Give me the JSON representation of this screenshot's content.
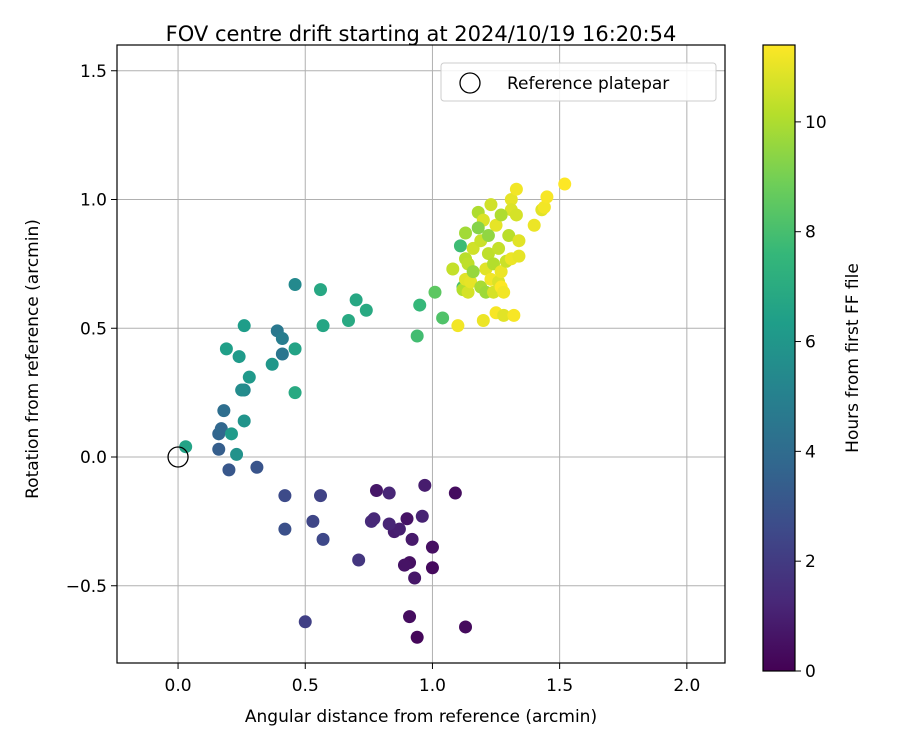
{
  "chart_data": {
    "type": "scatter",
    "title": "FOV centre drift starting at 2024/10/19 16:20:54",
    "xlabel": "Angular distance from reference (arcmin)",
    "ylabel": "Rotation from reference (arcmin)",
    "xlim": [
      -0.24,
      2.15
    ],
    "ylim": [
      -0.8,
      1.6
    ],
    "xticks": [
      0.0,
      0.5,
      1.0,
      1.5,
      2.0
    ],
    "xtick_labels": [
      "0.0",
      "0.5",
      "1.0",
      "1.5",
      "2.0"
    ],
    "yticks": [
      -0.5,
      0.0,
      0.5,
      1.0,
      1.5
    ],
    "ytick_labels": [
      "−0.5",
      "0.0",
      "0.5",
      "1.0",
      "1.5"
    ],
    "grid": true,
    "legend": {
      "placement": "top-right",
      "entries": [
        "Reference platepar"
      ]
    },
    "reference_point": {
      "name": "Reference platepar",
      "x": 0.0,
      "y": 0.0,
      "marker": "open-circle"
    },
    "colorbar": {
      "label": "Hours from first FF file",
      "range": [
        0,
        11.4
      ],
      "ticks": [
        0,
        2,
        4,
        6,
        8,
        10
      ],
      "tick_labels": [
        "0",
        "2",
        "4",
        "6",
        "8",
        "10"
      ],
      "colormap": "viridis",
      "colors": [
        "#440154",
        "#482878",
        "#3e4989",
        "#31688e",
        "#26828e",
        "#1f9e89",
        "#35b779",
        "#6ece58",
        "#b5de2b",
        "#fde725"
      ]
    },
    "points": [
      {
        "x": 0.94,
        "y": -0.7,
        "c": 0.2
      },
      {
        "x": 1.13,
        "y": -0.66,
        "c": 0.3
      },
      {
        "x": 0.91,
        "y": -0.62,
        "c": 0.4
      },
      {
        "x": 0.93,
        "y": -0.47,
        "c": 0.7
      },
      {
        "x": 0.91,
        "y": -0.41,
        "c": 0.5
      },
      {
        "x": 0.89,
        "y": -0.42,
        "c": 0.6
      },
      {
        "x": 1.0,
        "y": -0.43,
        "c": 0.3
      },
      {
        "x": 1.0,
        "y": -0.35,
        "c": 0.5
      },
      {
        "x": 0.92,
        "y": -0.32,
        "c": 0.8
      },
      {
        "x": 0.85,
        "y": -0.29,
        "c": 0.9
      },
      {
        "x": 0.87,
        "y": -0.28,
        "c": 1.0
      },
      {
        "x": 0.83,
        "y": -0.26,
        "c": 1.2
      },
      {
        "x": 0.9,
        "y": -0.24,
        "c": 0.6
      },
      {
        "x": 0.96,
        "y": -0.23,
        "c": 1.1
      },
      {
        "x": 0.76,
        "y": -0.25,
        "c": 1.4
      },
      {
        "x": 0.77,
        "y": -0.24,
        "c": 1.3
      },
      {
        "x": 0.78,
        "y": -0.13,
        "c": 0.7
      },
      {
        "x": 0.83,
        "y": -0.14,
        "c": 1.2
      },
      {
        "x": 0.97,
        "y": -0.11,
        "c": 0.9
      },
      {
        "x": 1.09,
        "y": -0.14,
        "c": 0.4
      },
      {
        "x": 0.71,
        "y": -0.4,
        "c": 1.8
      },
      {
        "x": 0.5,
        "y": -0.64,
        "c": 2.2
      },
      {
        "x": 0.57,
        "y": -0.32,
        "c": 2.5
      },
      {
        "x": 0.53,
        "y": -0.25,
        "c": 2.4
      },
      {
        "x": 0.42,
        "y": -0.28,
        "c": 2.8
      },
      {
        "x": 0.42,
        "y": -0.15,
        "c": 2.6
      },
      {
        "x": 0.56,
        "y": -0.15,
        "c": 2.3
      },
      {
        "x": 0.31,
        "y": -0.04,
        "c": 3.0
      },
      {
        "x": 0.2,
        "y": -0.05,
        "c": 3.1
      },
      {
        "x": 0.16,
        "y": 0.03,
        "c": 3.4
      },
      {
        "x": 0.16,
        "y": 0.09,
        "c": 3.7
      },
      {
        "x": 0.17,
        "y": 0.11,
        "c": 3.8
      },
      {
        "x": 0.18,
        "y": 0.18,
        "c": 4.1
      },
      {
        "x": 0.23,
        "y": 0.01,
        "c": 5.8
      },
      {
        "x": 0.03,
        "y": 0.04,
        "c": 6.6
      },
      {
        "x": 0.21,
        "y": 0.09,
        "c": 6.2
      },
      {
        "x": 0.26,
        "y": 0.14,
        "c": 5.9
      },
      {
        "x": 0.26,
        "y": 0.26,
        "c": 5.3
      },
      {
        "x": 0.25,
        "y": 0.26,
        "c": 5.5
      },
      {
        "x": 0.28,
        "y": 0.31,
        "c": 6.1
      },
      {
        "x": 0.19,
        "y": 0.42,
        "c": 6.4
      },
      {
        "x": 0.24,
        "y": 0.39,
        "c": 6.2
      },
      {
        "x": 0.26,
        "y": 0.51,
        "c": 6.3
      },
      {
        "x": 0.37,
        "y": 0.36,
        "c": 6.0
      },
      {
        "x": 0.39,
        "y": 0.49,
        "c": 4.6
      },
      {
        "x": 0.41,
        "y": 0.46,
        "c": 4.8
      },
      {
        "x": 0.41,
        "y": 0.4,
        "c": 4.5
      },
      {
        "x": 0.46,
        "y": 0.42,
        "c": 6.6
      },
      {
        "x": 0.46,
        "y": 0.25,
        "c": 6.9
      },
      {
        "x": 0.46,
        "y": 0.67,
        "c": 5.4
      },
      {
        "x": 0.56,
        "y": 0.65,
        "c": 6.8
      },
      {
        "x": 0.57,
        "y": 0.51,
        "c": 6.7
      },
      {
        "x": 0.67,
        "y": 0.53,
        "c": 6.9
      },
      {
        "x": 0.7,
        "y": 0.61,
        "c": 6.8
      },
      {
        "x": 0.74,
        "y": 0.57,
        "c": 6.9
      },
      {
        "x": 0.94,
        "y": 0.47,
        "c": 7.9
      },
      {
        "x": 0.95,
        "y": 0.59,
        "c": 7.6
      },
      {
        "x": 1.01,
        "y": 0.64,
        "c": 8.5
      },
      {
        "x": 1.04,
        "y": 0.54,
        "c": 8.2
      },
      {
        "x": 1.11,
        "y": 0.82,
        "c": 7.8
      },
      {
        "x": 1.12,
        "y": 0.66,
        "c": 8.1
      },
      {
        "x": 1.1,
        "y": 0.51,
        "c": 11.2
      },
      {
        "x": 1.08,
        "y": 0.73,
        "c": 10.4
      },
      {
        "x": 1.12,
        "y": 0.65,
        "c": 10.1
      },
      {
        "x": 1.13,
        "y": 0.69,
        "c": 10.9
      },
      {
        "x": 1.14,
        "y": 0.64,
        "c": 10.7
      },
      {
        "x": 1.13,
        "y": 0.77,
        "c": 10.2
      },
      {
        "x": 1.13,
        "y": 0.87,
        "c": 9.8
      },
      {
        "x": 1.14,
        "y": 0.75,
        "c": 10.3
      },
      {
        "x": 1.15,
        "y": 0.68,
        "c": 11.0
      },
      {
        "x": 1.16,
        "y": 0.81,
        "c": 10.6
      },
      {
        "x": 1.18,
        "y": 0.95,
        "c": 10.0
      },
      {
        "x": 1.19,
        "y": 0.84,
        "c": 10.5
      },
      {
        "x": 1.19,
        "y": 0.66,
        "c": 9.9
      },
      {
        "x": 1.2,
        "y": 0.92,
        "c": 10.8
      },
      {
        "x": 1.2,
        "y": 0.53,
        "c": 11.1
      },
      {
        "x": 1.21,
        "y": 0.73,
        "c": 10.9
      },
      {
        "x": 1.21,
        "y": 0.64,
        "c": 9.7
      },
      {
        "x": 1.22,
        "y": 0.79,
        "c": 10.3
      },
      {
        "x": 1.23,
        "y": 0.69,
        "c": 11.2
      },
      {
        "x": 1.23,
        "y": 0.98,
        "c": 10.6
      },
      {
        "x": 1.24,
        "y": 0.75,
        "c": 10.1
      },
      {
        "x": 1.24,
        "y": 0.64,
        "c": 10.7
      },
      {
        "x": 1.25,
        "y": 0.9,
        "c": 11.0
      },
      {
        "x": 1.25,
        "y": 0.56,
        "c": 11.3
      },
      {
        "x": 1.26,
        "y": 0.81,
        "c": 10.4
      },
      {
        "x": 1.26,
        "y": 0.68,
        "c": 10.8
      },
      {
        "x": 1.27,
        "y": 0.72,
        "c": 11.1
      },
      {
        "x": 1.27,
        "y": 0.66,
        "c": 11.4
      },
      {
        "x": 1.28,
        "y": 0.64,
        "c": 11.2
      },
      {
        "x": 1.28,
        "y": 0.55,
        "c": 10.9
      },
      {
        "x": 1.29,
        "y": 0.76,
        "c": 10.5
      },
      {
        "x": 1.3,
        "y": 0.86,
        "c": 10.2
      },
      {
        "x": 1.31,
        "y": 1.0,
        "c": 11.0
      },
      {
        "x": 1.31,
        "y": 0.96,
        "c": 10.8
      },
      {
        "x": 1.31,
        "y": 0.77,
        "c": 11.1
      },
      {
        "x": 1.32,
        "y": 0.55,
        "c": 11.3
      },
      {
        "x": 1.33,
        "y": 1.04,
        "c": 11.2
      },
      {
        "x": 1.33,
        "y": 0.94,
        "c": 10.7
      },
      {
        "x": 1.34,
        "y": 0.84,
        "c": 10.9
      },
      {
        "x": 1.34,
        "y": 0.78,
        "c": 11.0
      },
      {
        "x": 1.4,
        "y": 0.9,
        "c": 11.1
      },
      {
        "x": 1.43,
        "y": 0.96,
        "c": 10.9
      },
      {
        "x": 1.44,
        "y": 0.97,
        "c": 11.2
      },
      {
        "x": 1.45,
        "y": 1.01,
        "c": 11.3
      },
      {
        "x": 1.52,
        "y": 1.06,
        "c": 11.4
      },
      {
        "x": 1.18,
        "y": 0.89,
        "c": 9.3
      },
      {
        "x": 1.16,
        "y": 0.72,
        "c": 9.6
      },
      {
        "x": 1.22,
        "y": 0.86,
        "c": 9.5
      },
      {
        "x": 1.27,
        "y": 0.94,
        "c": 10.0
      }
    ]
  }
}
